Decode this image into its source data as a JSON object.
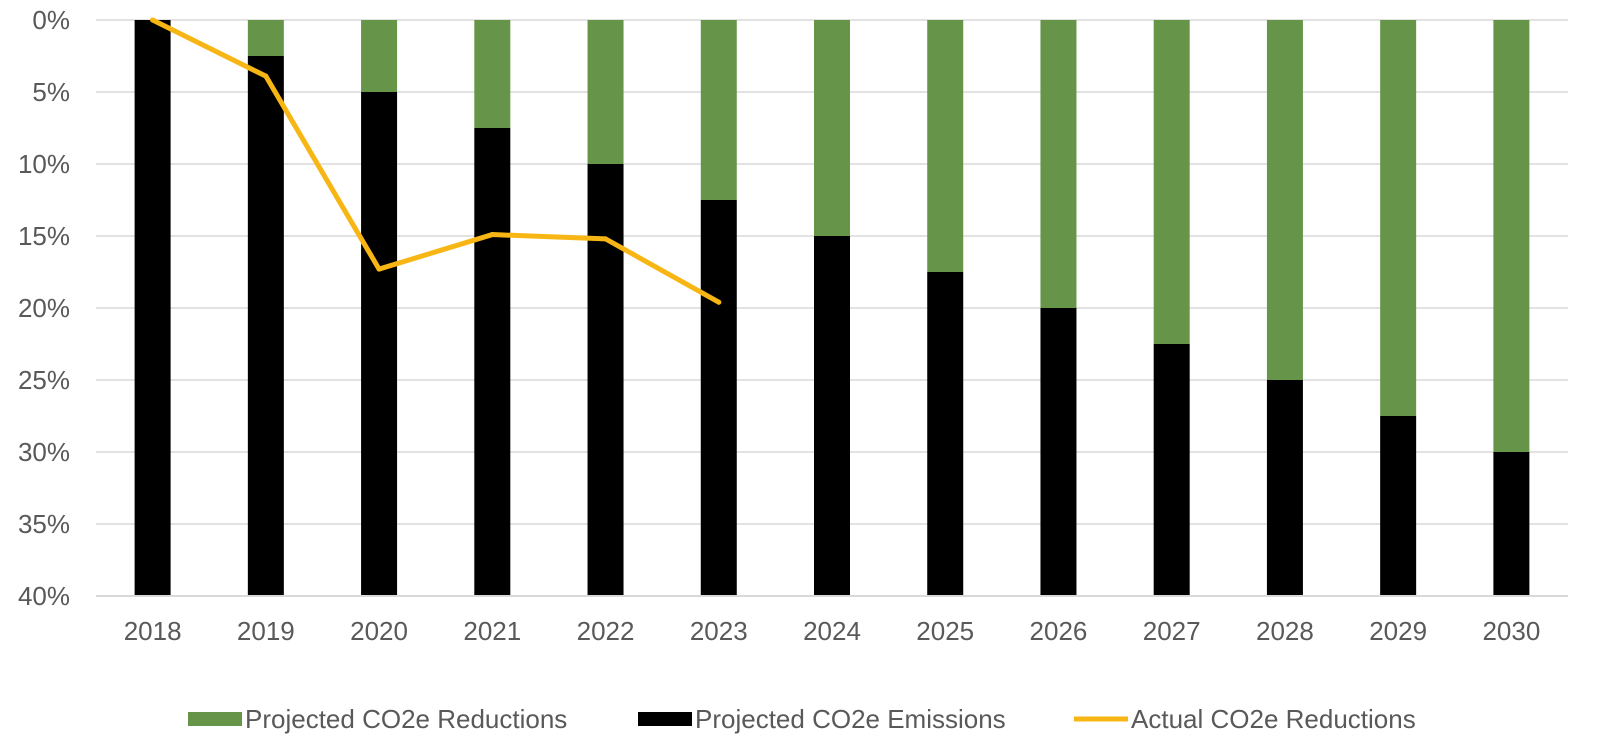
{
  "chart_data": {
    "type": "bar",
    "stacked": true,
    "y_inverted": true,
    "categories": [
      "2018",
      "2019",
      "2020",
      "2021",
      "2022",
      "2023",
      "2024",
      "2025",
      "2026",
      "2027",
      "2028",
      "2029",
      "2030"
    ],
    "ylim": [
      0,
      40
    ],
    "y_ticks": [
      0,
      5,
      10,
      15,
      20,
      25,
      30,
      35,
      40
    ],
    "y_tick_labels": [
      "0%",
      "5%",
      "10%",
      "15%",
      "20%",
      "25%",
      "30%",
      "35%",
      "40%"
    ],
    "grid": true,
    "legend_position": "bottom",
    "series": [
      {
        "name": "Projected CO2e Reductions",
        "kind": "bar",
        "color": "#669448",
        "values": [
          0,
          2.5,
          5,
          7.5,
          10,
          12.5,
          15,
          17.5,
          20,
          22.5,
          25,
          27.5,
          30
        ]
      },
      {
        "name": "Projected CO2e Emissions",
        "kind": "bar",
        "color": "#000000",
        "values": [
          40,
          37.5,
          35,
          32.5,
          30,
          27.5,
          25,
          22.5,
          20,
          17.5,
          15,
          12.5,
          10
        ]
      },
      {
        "name": "Actual CO2e Reductions",
        "kind": "line",
        "color": "#f7b614",
        "values": [
          0,
          3.9,
          17.3,
          14.9,
          15.2,
          19.6,
          null,
          null,
          null,
          null,
          null,
          null,
          null
        ]
      }
    ]
  }
}
